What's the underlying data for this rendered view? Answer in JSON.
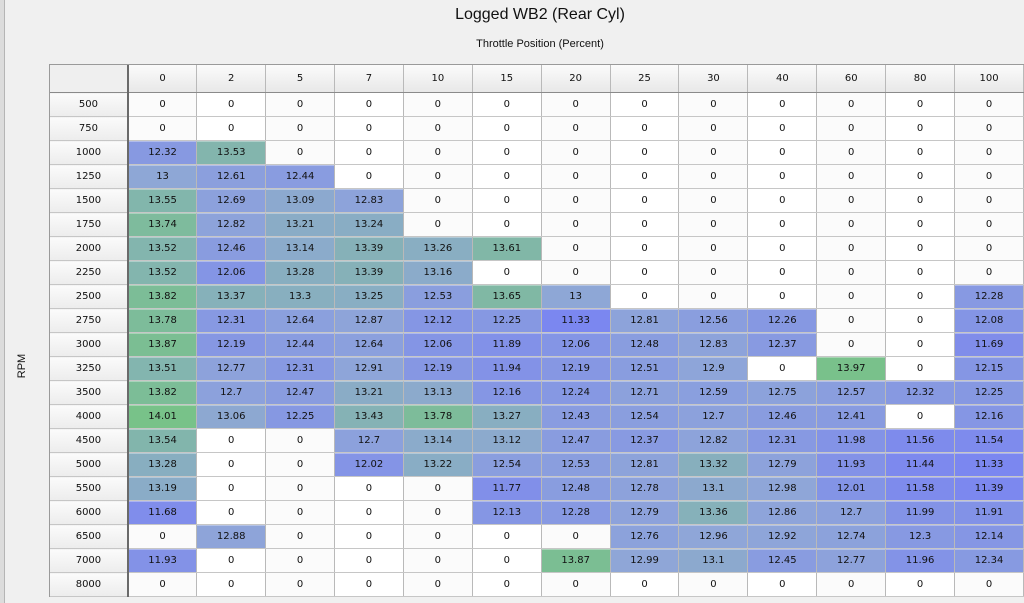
{
  "chart_data": {
    "type": "heatmap",
    "title": "Logged WB2 (Rear Cyl)",
    "xlabel": "Throttle Position (Percent)",
    "ylabel": "RPM",
    "x": [
      "0",
      "2",
      "5",
      "7",
      "10",
      "15",
      "20",
      "25",
      "30",
      "40",
      "60",
      "80",
      "100"
    ],
    "y": [
      "500",
      "750",
      "1000",
      "1250",
      "1500",
      "1750",
      "2000",
      "2250",
      "2500",
      "2750",
      "3000",
      "3250",
      "3500",
      "4000",
      "4500",
      "5000",
      "5500",
      "6000",
      "6500",
      "7000",
      "8000"
    ],
    "values": [
      [
        "0",
        "0",
        "0",
        "0",
        "0",
        "0",
        "0",
        "0",
        "0",
        "0",
        "0",
        "0",
        "0"
      ],
      [
        "0",
        "0",
        "0",
        "0",
        "0",
        "0",
        "0",
        "0",
        "0",
        "0",
        "0",
        "0",
        "0"
      ],
      [
        "12.32",
        "13.53",
        "0",
        "0",
        "0",
        "0",
        "0",
        "0",
        "0",
        "0",
        "0",
        "0",
        "0"
      ],
      [
        "13",
        "12.61",
        "12.44",
        "0",
        "0",
        "0",
        "0",
        "0",
        "0",
        "0",
        "0",
        "0",
        "0"
      ],
      [
        "13.55",
        "12.69",
        "13.09",
        "12.83",
        "0",
        "0",
        "0",
        "0",
        "0",
        "0",
        "0",
        "0",
        "0"
      ],
      [
        "13.74",
        "12.82",
        "13.21",
        "13.24",
        "0",
        "0",
        "0",
        "0",
        "0",
        "0",
        "0",
        "0",
        "0"
      ],
      [
        "13.52",
        "12.46",
        "13.14",
        "13.39",
        "13.26",
        "13.61",
        "0",
        "0",
        "0",
        "0",
        "0",
        "0",
        "0"
      ],
      [
        "13.52",
        "12.06",
        "13.28",
        "13.39",
        "13.16",
        "0",
        "0",
        "0",
        "0",
        "0",
        "0",
        "0",
        "0"
      ],
      [
        "13.82",
        "13.37",
        "13.3",
        "13.25",
        "12.53",
        "13.65",
        "13",
        "0",
        "0",
        "0",
        "0",
        "0",
        "12.28"
      ],
      [
        "13.78",
        "12.31",
        "12.64",
        "12.87",
        "12.12",
        "12.25",
        "11.33",
        "12.81",
        "12.56",
        "12.26",
        "0",
        "0",
        "12.08"
      ],
      [
        "13.87",
        "12.19",
        "12.44",
        "12.64",
        "12.06",
        "11.89",
        "12.06",
        "12.48",
        "12.83",
        "12.37",
        "0",
        "0",
        "11.69"
      ],
      [
        "13.51",
        "12.77",
        "12.31",
        "12.91",
        "12.19",
        "11.94",
        "12.19",
        "12.51",
        "12.9",
        "0",
        "13.97",
        "0",
        "12.15"
      ],
      [
        "13.82",
        "12.7",
        "12.47",
        "13.21",
        "13.13",
        "12.16",
        "12.24",
        "12.71",
        "12.59",
        "12.75",
        "12.57",
        "12.32",
        "12.25"
      ],
      [
        "14.01",
        "13.06",
        "12.25",
        "13.43",
        "13.78",
        "13.27",
        "12.43",
        "12.54",
        "12.7",
        "12.46",
        "12.41",
        "0",
        "12.16"
      ],
      [
        "13.54",
        "0",
        "0",
        "12.7",
        "13.14",
        "13.12",
        "12.47",
        "12.37",
        "12.82",
        "12.31",
        "11.98",
        "11.56",
        "11.54"
      ],
      [
        "13.28",
        "0",
        "0",
        "12.02",
        "13.22",
        "12.54",
        "12.53",
        "12.81",
        "13.32",
        "12.79",
        "11.93",
        "11.44",
        "11.33"
      ],
      [
        "13.19",
        "0",
        "0",
        "0",
        "0",
        "11.77",
        "12.48",
        "12.78",
        "13.1",
        "12.98",
        "12.01",
        "11.58",
        "11.39"
      ],
      [
        "11.68",
        "0",
        "0",
        "0",
        "0",
        "12.13",
        "12.28",
        "12.79",
        "13.36",
        "12.86",
        "12.7",
        "11.99",
        "11.91"
      ],
      [
        "0",
        "12.88",
        "0",
        "0",
        "0",
        "0",
        "0",
        "12.76",
        "12.96",
        "12.92",
        "12.74",
        "12.3",
        "12.14"
      ],
      [
        "11.93",
        "0",
        "0",
        "0",
        "0",
        "0",
        "13.87",
        "12.99",
        "13.1",
        "12.45",
        "12.77",
        "11.96",
        "12.34"
      ],
      [
        "0",
        "0",
        "0",
        "0",
        "0",
        "0",
        "0",
        "0",
        "0",
        "0",
        "0",
        "0",
        "0"
      ]
    ],
    "colors": {
      "rich": "#7b86f0",
      "mid": "#8fa6d8",
      "lean": "#78c289",
      "empty": "#ffffff"
    }
  }
}
